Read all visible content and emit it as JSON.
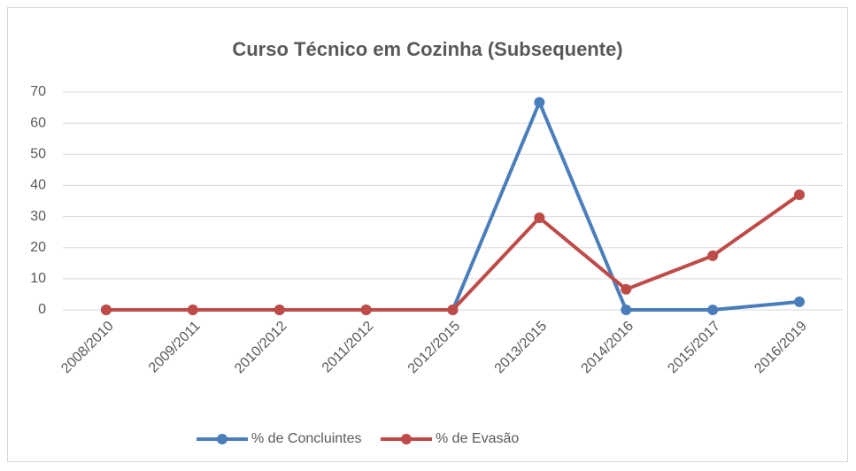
{
  "chart_data": {
    "type": "line",
    "title": "Curso Técnico em Cozinha (Subsequente)",
    "categories": [
      "2008/2010",
      "2009/2011",
      "2010/2012",
      "2011/2012",
      "2012/2015",
      "2013/2015",
      "2014/2016",
      "2015/2017",
      "2016/2019"
    ],
    "series": [
      {
        "name": "% de Concluintes",
        "color": "#4a7ebb",
        "values": [
          0,
          0,
          0,
          0,
          0,
          66.7,
          0,
          0,
          2.6
        ]
      },
      {
        "name": "% de Evasão",
        "color": "#be4b48",
        "values": [
          0,
          0,
          0,
          0,
          0,
          29.6,
          6.6,
          17.4,
          37
        ]
      }
    ],
    "ylim": [
      0,
      70
    ],
    "yticks": [
      0,
      10,
      20,
      30,
      40,
      50,
      60,
      70
    ],
    "grid": true,
    "legend": "bottom"
  }
}
